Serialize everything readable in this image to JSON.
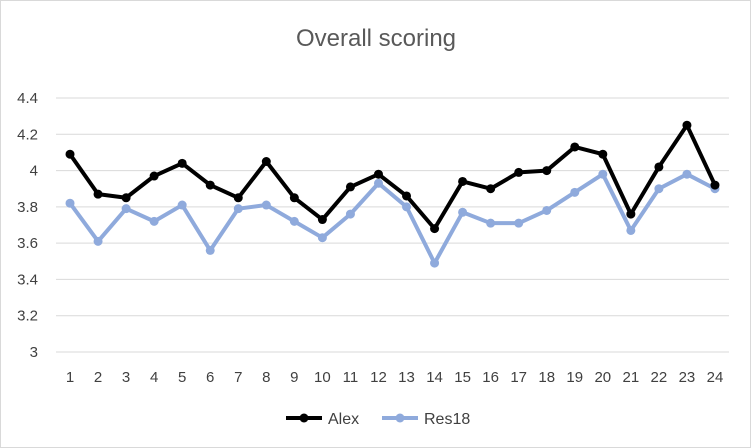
{
  "chart_data": {
    "type": "line",
    "title": "Overall scoring",
    "xlabel": "",
    "ylabel": "",
    "ylim": [
      3,
      4.4
    ],
    "yticks": [
      "3",
      "3.2",
      "3.4",
      "3.6",
      "3.8",
      "4",
      "4.2",
      "4.4"
    ],
    "categories": [
      "1",
      "2",
      "3",
      "4",
      "5",
      "6",
      "7",
      "8",
      "9",
      "10",
      "11",
      "12",
      "13",
      "14",
      "15",
      "16",
      "17",
      "18",
      "19",
      "20",
      "21",
      "22",
      "23",
      "24"
    ],
    "grid": true,
    "legend_position": "bottom",
    "series": [
      {
        "name": "Alex",
        "color": "#000000",
        "values": [
          4.09,
          3.87,
          3.85,
          3.97,
          4.04,
          3.92,
          3.85,
          4.05,
          3.85,
          3.73,
          3.91,
          3.98,
          3.86,
          3.68,
          3.94,
          3.9,
          3.99,
          4.0,
          4.13,
          4.09,
          3.76,
          4.02,
          4.25,
          3.92
        ]
      },
      {
        "name": "Res18",
        "color": "#8faadc",
        "values": [
          3.82,
          3.61,
          3.79,
          3.72,
          3.81,
          3.56,
          3.79,
          3.81,
          3.72,
          3.63,
          3.76,
          3.93,
          3.8,
          3.49,
          3.77,
          3.71,
          3.71,
          3.78,
          3.88,
          3.98,
          3.67,
          3.9,
          3.98,
          3.9
        ]
      }
    ]
  }
}
